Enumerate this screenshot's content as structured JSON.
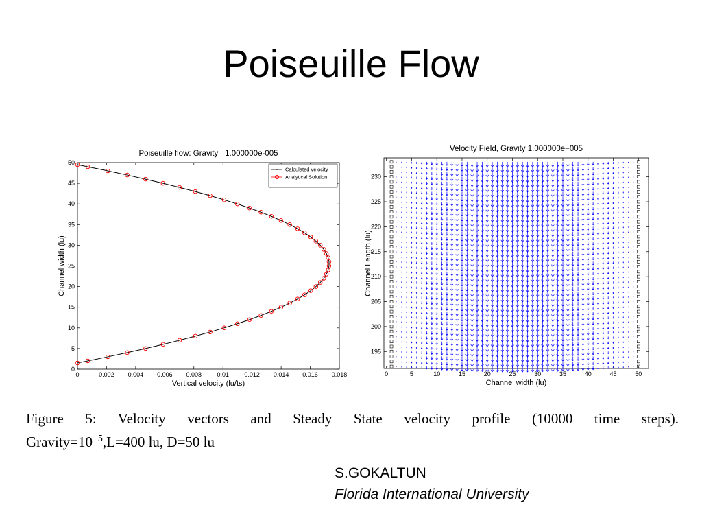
{
  "header": {
    "title": "Poiseuille Flow"
  },
  "chart_data": [
    {
      "type": "line",
      "title": "Poiseuille flow: Gravity= 1.000000e-005",
      "x_label": "Vertical velocity (lu/ts)",
      "y_label": "Channel width (lu)",
      "y": [
        1.5,
        2,
        3,
        4,
        5,
        6,
        7,
        8,
        9,
        10,
        11,
        12,
        13,
        14,
        15,
        16,
        17,
        18,
        19,
        20,
        21,
        22,
        23,
        24,
        25,
        26,
        27,
        28,
        29,
        30,
        31,
        32,
        33,
        34,
        35,
        36,
        37,
        38,
        39,
        40,
        41,
        42,
        43,
        44,
        45,
        46,
        47,
        48,
        49,
        49.5
      ],
      "series": [
        {
          "name": "Calculated velocity",
          "color": "#000000",
          "style": "line",
          "values": [
            0,
            0.00071,
            0.00209,
            0.00342,
            0.00468,
            0.00588,
            0.00702,
            0.0081,
            0.00912,
            0.01008,
            0.01099,
            0.01183,
            0.01261,
            0.01333,
            0.01399,
            0.01459,
            0.01513,
            0.01561,
            0.01603,
            0.01639,
            0.01669,
            0.01693,
            0.01711,
            0.01723,
            0.01729,
            0.01729,
            0.01723,
            0.01711,
            0.01693,
            0.01669,
            0.01639,
            0.01603,
            0.01561,
            0.01513,
            0.01459,
            0.01399,
            0.01333,
            0.01261,
            0.01183,
            0.01099,
            0.01008,
            0.00912,
            0.0081,
            0.00702,
            0.00588,
            0.00468,
            0.00342,
            0.00209,
            0.00071,
            0
          ]
        },
        {
          "name": "Analytical Solution",
          "color": "#ff0000",
          "style": "circles",
          "values": [
            0,
            0.00071,
            0.00209,
            0.00342,
            0.00468,
            0.00588,
            0.00702,
            0.0081,
            0.00912,
            0.01008,
            0.01099,
            0.01183,
            0.01261,
            0.01333,
            0.01399,
            0.01459,
            0.01513,
            0.01561,
            0.01603,
            0.01639,
            0.01669,
            0.01693,
            0.01711,
            0.01723,
            0.01729,
            0.01729,
            0.01723,
            0.01711,
            0.01693,
            0.01669,
            0.01639,
            0.01603,
            0.01561,
            0.01513,
            0.01459,
            0.01399,
            0.01333,
            0.01261,
            0.01183,
            0.01099,
            0.01008,
            0.00912,
            0.0081,
            0.00702,
            0.00588,
            0.00468,
            0.00342,
            0.00209,
            0.00071,
            0
          ]
        }
      ],
      "xlim": [
        0,
        0.018
      ],
      "xticks": [
        0,
        0.002,
        0.004,
        0.006,
        0.008,
        0.01,
        0.012,
        0.014,
        0.016,
        0.018
      ],
      "ylim": [
        0,
        50
      ],
      "yticks": [
        0,
        5,
        10,
        15,
        20,
        25,
        30,
        35,
        40,
        45,
        50
      ],
      "grid": false,
      "legend": "upper right"
    },
    {
      "type": "quiver",
      "title": "Velocity Field, Gravity 1.000000e−005",
      "x_label": "Channel width (lu)",
      "y_label": "Channel Length (lu)",
      "color": "#0000ff",
      "x": [
        2,
        3,
        4,
        5,
        6,
        7,
        8,
        9,
        10,
        11,
        12,
        13,
        14,
        15,
        16,
        17,
        18,
        19,
        20,
        21,
        22,
        23,
        24,
        25,
        26,
        27,
        28,
        29,
        30,
        31,
        32,
        33,
        34,
        35,
        36,
        37,
        38,
        39,
        40,
        41,
        42,
        43,
        44,
        45,
        46,
        47,
        48,
        49
      ],
      "values": [
        0.00071,
        0.00209,
        0.00342,
        0.00468,
        0.00588,
        0.00702,
        0.0081,
        0.00912,
        0.01008,
        0.01099,
        0.01183,
        0.01261,
        0.01333,
        0.01399,
        0.01459,
        0.01513,
        0.01561,
        0.01603,
        0.01639,
        0.01669,
        0.01693,
        0.01711,
        0.01723,
        0.01729,
        0.01729,
        0.01723,
        0.01711,
        0.01693,
        0.01669,
        0.01639,
        0.01603,
        0.01561,
        0.01513,
        0.01459,
        0.01399,
        0.01333,
        0.01261,
        0.01183,
        0.01099,
        0.01008,
        0.00912,
        0.0081,
        0.00702,
        0.00588,
        0.00468,
        0.00342,
        0.00209,
        0.00071
      ],
      "walls": [
        1,
        50
      ],
      "wall_color": "#000000",
      "rows": [
        192,
        193,
        194,
        195,
        196,
        197,
        198,
        199,
        200,
        201,
        202,
        203,
        204,
        205,
        206,
        207,
        208,
        209,
        210,
        211,
        212,
        213,
        214,
        215,
        216,
        217,
        218,
        219,
        220,
        221,
        222,
        223,
        224,
        225,
        226,
        227,
        228,
        229,
        230,
        231,
        232,
        233
      ],
      "xlim": [
        -0.5,
        52
      ],
      "xticks": [
        0,
        5,
        10,
        15,
        20,
        25,
        30,
        35,
        40,
        45,
        50
      ],
      "ylim": [
        191.6,
        233.8
      ],
      "yticks": [
        195,
        200,
        205,
        210,
        215,
        220,
        225,
        230
      ],
      "grid": false
    }
  ],
  "caption": {
    "line1": "Figure 5:  Velocity vectors and Steady State velocity profile (10000 time steps).",
    "line2_before": "Gravity=10",
    "line2_sup": "−5",
    "line2_after": ",L=400 lu, D=50 lu"
  },
  "author": {
    "name": "S.GOKALTUN",
    "institution": "Florida International University"
  }
}
